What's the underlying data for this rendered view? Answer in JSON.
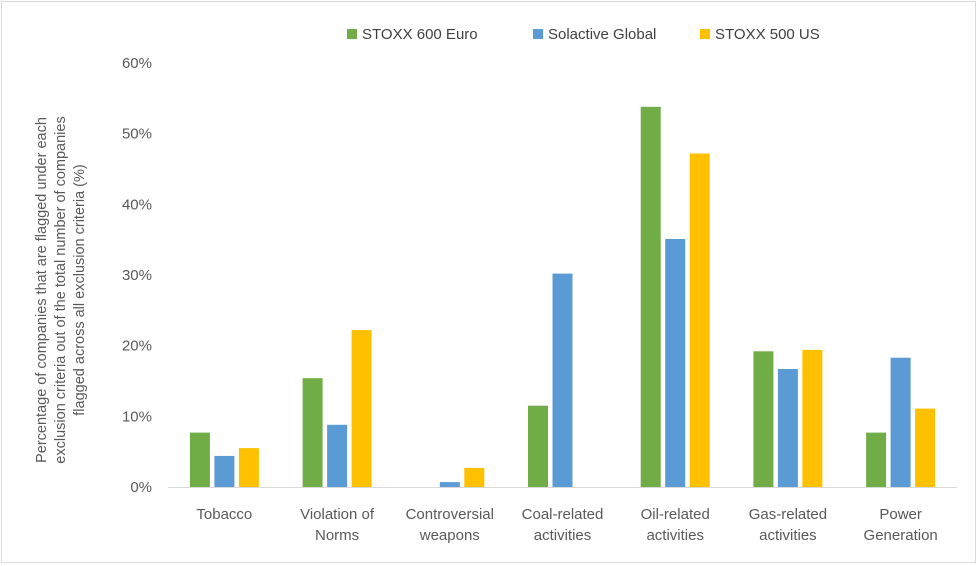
{
  "chart_data": {
    "type": "bar",
    "title": "",
    "xlabel": "",
    "ylabel": "Percentage of companies that are flagged under each exclusion criteria out of the total number of companies flagged across all exclusion criteria (%)",
    "ylabel_lines": [
      "Percentage of companies that are flagged under each",
      "exclusion criteria out of the total number of companies",
      "flagged across all exclusion criteria (%)"
    ],
    "ylim": [
      0,
      60
    ],
    "yticks": [
      0,
      10,
      20,
      30,
      40,
      50,
      60
    ],
    "ytick_labels": [
      "0%",
      "10%",
      "20%",
      "30%",
      "40%",
      "50%",
      "60%"
    ],
    "grid": false,
    "legend_position": "top-center",
    "categories": [
      "Tobacco",
      "Violation of Norms",
      "Controversial weapons",
      "Coal-related activities",
      "Oil-related activities",
      "Gas-related activities",
      "Power Generation"
    ],
    "category_lines": [
      [
        "Tobacco"
      ],
      [
        "Violation of",
        "Norms"
      ],
      [
        "Controversial",
        "weapons"
      ],
      [
        "Coal-related",
        "activities"
      ],
      [
        "Oil-related",
        "activities"
      ],
      [
        "Gas-related",
        "activities"
      ],
      [
        "Power",
        "Generation"
      ]
    ],
    "series": [
      {
        "name": "STOXX 600 Euro",
        "color": "#70ad47",
        "values": [
          7.7,
          15.4,
          0,
          11.5,
          53.8,
          19.2,
          7.7
        ]
      },
      {
        "name": "Solactive Global",
        "color": "#5b9bd5",
        "values": [
          4.4,
          8.8,
          0.7,
          30.2,
          35.1,
          16.7,
          18.3
        ]
      },
      {
        "name": "STOXX 500 US",
        "color": "#ffc000",
        "values": [
          5.5,
          22.2,
          2.7,
          0,
          47.2,
          19.4,
          11.1
        ]
      }
    ]
  }
}
